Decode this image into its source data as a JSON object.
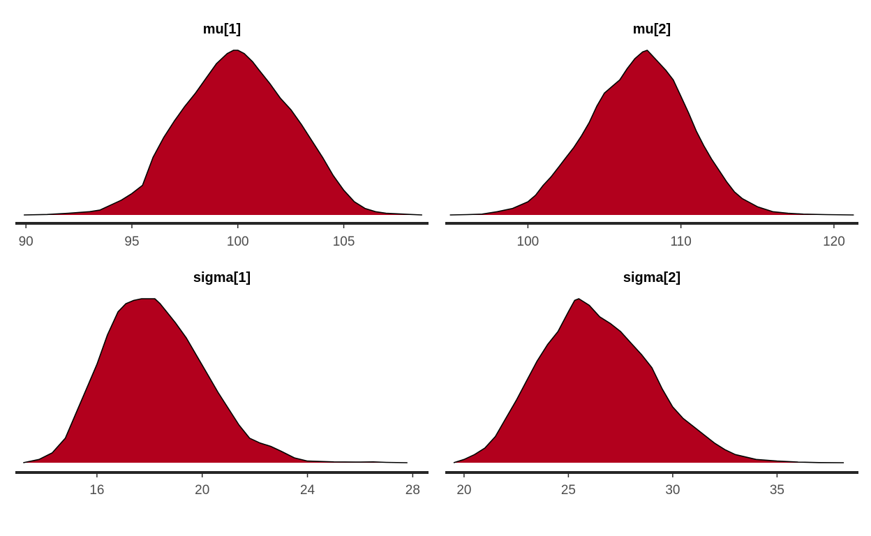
{
  "colors": {
    "fill": "#b2001d",
    "outline": "#000000",
    "axis": "#262626",
    "tick_text": "#4d4d4d",
    "background": "#ffffff"
  },
  "chart_data": [
    {
      "type": "area",
      "title": "mu[1]",
      "xlabel": "",
      "ylabel": "",
      "xlim": [
        89.5,
        109.0
      ],
      "ylim": [
        0,
        1
      ],
      "ticks": [
        90,
        95,
        100,
        105
      ],
      "tick_labels": [
        "90",
        "95",
        "100",
        "105"
      ],
      "grid": false,
      "x": [
        89.9,
        91.0,
        92.0,
        93.0,
        93.5,
        94.0,
        94.5,
        95.0,
        95.5,
        96.0,
        96.5,
        97.0,
        97.5,
        98.0,
        98.5,
        99.0,
        99.5,
        99.8,
        100.0,
        100.3,
        100.7,
        101.0,
        101.5,
        102.0,
        102.5,
        103.0,
        103.5,
        104.0,
        104.5,
        105.0,
        105.5,
        106.0,
        106.5,
        107.0,
        108.0,
        108.7
      ],
      "density": [
        0.0,
        0.003,
        0.01,
        0.02,
        0.03,
        0.06,
        0.09,
        0.13,
        0.18,
        0.35,
        0.47,
        0.57,
        0.66,
        0.74,
        0.83,
        0.92,
        0.98,
        1.0,
        1.0,
        0.98,
        0.93,
        0.88,
        0.8,
        0.71,
        0.64,
        0.55,
        0.45,
        0.35,
        0.24,
        0.15,
        0.08,
        0.04,
        0.02,
        0.01,
        0.004,
        0.0
      ]
    },
    {
      "type": "area",
      "title": "mu[2]",
      "xlabel": "",
      "ylabel": "",
      "xlim": [
        94.6,
        121.6
      ],
      "ylim": [
        0,
        1
      ],
      "ticks": [
        100,
        110,
        120
      ],
      "tick_labels": [
        "100",
        "110",
        "120"
      ],
      "grid": false,
      "x": [
        94.9,
        96.0,
        97.0,
        98.0,
        99.0,
        100.0,
        100.5,
        101.0,
        101.5,
        102.0,
        102.5,
        103.0,
        103.5,
        104.0,
        104.5,
        105.0,
        105.5,
        106.0,
        106.5,
        107.0,
        107.5,
        107.8,
        108.0,
        108.5,
        109.0,
        109.5,
        110.0,
        110.5,
        111.0,
        111.5,
        112.0,
        112.5,
        113.0,
        113.5,
        114.0,
        115.0,
        116.0,
        117.0,
        118.0,
        119.5,
        121.3
      ],
      "density": [
        0.0,
        0.002,
        0.005,
        0.02,
        0.04,
        0.08,
        0.12,
        0.18,
        0.23,
        0.29,
        0.35,
        0.41,
        0.48,
        0.56,
        0.66,
        0.74,
        0.78,
        0.82,
        0.89,
        0.95,
        0.99,
        1.0,
        0.98,
        0.93,
        0.88,
        0.82,
        0.72,
        0.62,
        0.51,
        0.42,
        0.34,
        0.27,
        0.2,
        0.14,
        0.1,
        0.05,
        0.02,
        0.01,
        0.005,
        0.002,
        0.0
      ]
    },
    {
      "type": "area",
      "title": "sigma[1]",
      "xlabel": "",
      "ylabel": "",
      "xlim": [
        12.9,
        28.6
      ],
      "ylim": [
        0,
        1
      ],
      "ticks": [
        16,
        20,
        24,
        28
      ],
      "tick_labels": [
        "16",
        "20",
        "24",
        "28"
      ],
      "grid": false,
      "x": [
        13.2,
        13.8,
        14.3,
        14.8,
        15.2,
        15.6,
        16.0,
        16.4,
        16.8,
        17.1,
        17.4,
        17.7,
        18.0,
        18.2,
        18.4,
        18.7,
        19.0,
        19.4,
        19.8,
        20.2,
        20.6,
        21.0,
        21.4,
        21.8,
        22.2,
        22.6,
        23.0,
        23.5,
        24.0,
        25.0,
        26.0,
        26.5,
        27.0,
        27.8
      ],
      "density": [
        0.0,
        0.02,
        0.06,
        0.15,
        0.3,
        0.45,
        0.6,
        0.78,
        0.92,
        0.97,
        0.99,
        1.0,
        1.0,
        1.0,
        0.97,
        0.91,
        0.85,
        0.76,
        0.65,
        0.54,
        0.43,
        0.33,
        0.23,
        0.15,
        0.12,
        0.1,
        0.07,
        0.03,
        0.01,
        0.005,
        0.004,
        0.005,
        0.002,
        0.0
      ]
    },
    {
      "type": "area",
      "title": "sigma[2]",
      "xlabel": "",
      "ylabel": "",
      "xlim": [
        19.1,
        38.9
      ],
      "ylim": [
        0,
        1
      ],
      "ticks": [
        20,
        25,
        30,
        35
      ],
      "tick_labels": [
        "20",
        "25",
        "30",
        "35"
      ],
      "grid": false,
      "x": [
        19.5,
        20.0,
        20.5,
        21.0,
        21.5,
        22.0,
        22.5,
        23.0,
        23.5,
        24.0,
        24.5,
        25.0,
        25.3,
        25.5,
        26.0,
        26.5,
        27.0,
        27.5,
        28.0,
        28.5,
        29.0,
        29.5,
        30.0,
        30.5,
        31.0,
        31.5,
        32.0,
        32.5,
        33.0,
        34.0,
        35.0,
        36.0,
        37.0,
        38.2
      ],
      "density": [
        0.0,
        0.02,
        0.05,
        0.09,
        0.16,
        0.27,
        0.38,
        0.5,
        0.62,
        0.72,
        0.8,
        0.92,
        0.99,
        1.0,
        0.96,
        0.89,
        0.85,
        0.8,
        0.73,
        0.66,
        0.58,
        0.45,
        0.34,
        0.27,
        0.22,
        0.17,
        0.12,
        0.08,
        0.05,
        0.02,
        0.01,
        0.004,
        0.001,
        0.0
      ]
    }
  ]
}
